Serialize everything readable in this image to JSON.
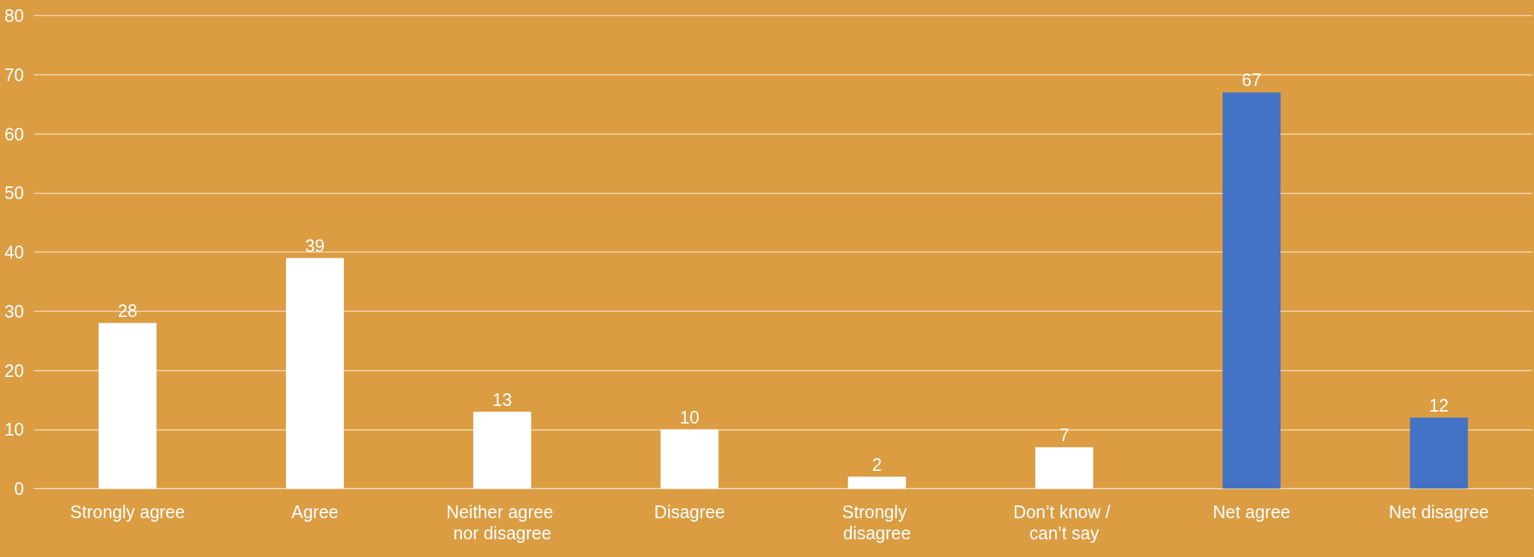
{
  "chart_data": {
    "type": "bar",
    "categories": [
      "Strongly agree",
      "Agree",
      "Neither agree nor disagree",
      "Disagree",
      "Strongly disagree",
      "Don’t know / can’t say",
      "Net agree",
      "Net disagree"
    ],
    "values": [
      28,
      39,
      13,
      10,
      2,
      7,
      67,
      12
    ],
    "colors": [
      "#ffffff",
      "#ffffff",
      "#ffffff",
      "#ffffff",
      "#ffffff",
      "#ffffff",
      "#4472c4",
      "#4472c4"
    ],
    "ylim": [
      0,
      80
    ],
    "yticks": [
      0,
      10,
      20,
      30,
      40,
      50,
      60,
      70,
      80
    ],
    "grid": "y",
    "data_labels": true
  }
}
